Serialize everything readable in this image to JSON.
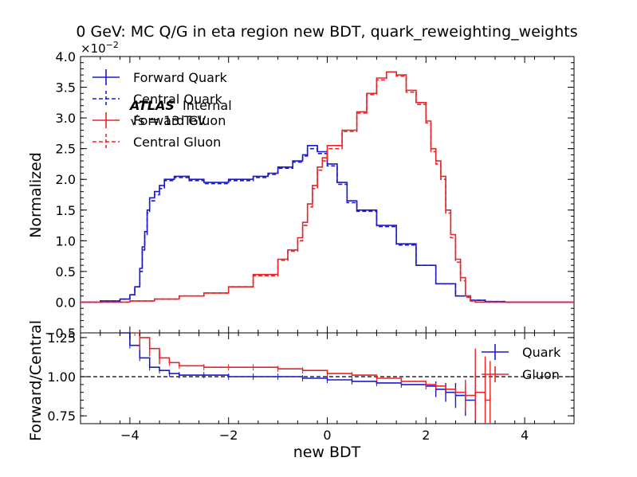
{
  "chart_data": {
    "type": "line",
    "title": "0 GeV: MC Q/G in eta region new BDT, quark_reweighting_weights",
    "annotation": {
      "experiment": "ATLAS",
      "status": "Internal",
      "energy": "√s = 13 TeV"
    },
    "xlabel": "new BDT",
    "xlim": [
      -5,
      5
    ],
    "xticks": [
      "−4",
      "−2",
      "0",
      "2",
      "4"
    ],
    "legend_placement": "top-left",
    "colors": {
      "quark": "#1a1acc",
      "gluon": "#e8262a"
    },
    "main_panel": {
      "ylabel": "Normalized",
      "ylim": [
        -0.5,
        4.0
      ],
      "scale_label": "×10",
      "scale_exponent": "−2",
      "yticks": [
        "−0.5",
        "0.0",
        "0.5",
        "1.0",
        "1.5",
        "2.0",
        "2.5",
        "3.0",
        "3.5",
        "4.0"
      ],
      "series": [
        {
          "name": "Forward Quark",
          "color": "#1a1acc",
          "dashed": false,
          "points": [
            [
              -5,
              0.0
            ],
            [
              -4.6,
              0.02
            ],
            [
              -4.2,
              0.05
            ],
            [
              -4.0,
              0.12
            ],
            [
              -3.9,
              0.25
            ],
            [
              -3.8,
              0.55
            ],
            [
              -3.75,
              0.9
            ],
            [
              -3.7,
              1.15
            ],
            [
              -3.65,
              1.5
            ],
            [
              -3.6,
              1.7
            ],
            [
              -3.5,
              1.8
            ],
            [
              -3.4,
              1.9
            ],
            [
              -3.3,
              2.0
            ],
            [
              -3.1,
              2.05
            ],
            [
              -2.8,
              2.0
            ],
            [
              -2.5,
              1.95
            ],
            [
              -2.0,
              2.0
            ],
            [
              -1.5,
              2.05
            ],
            [
              -1.2,
              2.1
            ],
            [
              -1.0,
              2.2
            ],
            [
              -0.7,
              2.3
            ],
            [
              -0.5,
              2.4
            ],
            [
              -0.4,
              2.55
            ],
            [
              -0.2,
              2.45
            ],
            [
              0.0,
              2.25
            ],
            [
              0.2,
              1.95
            ],
            [
              0.4,
              1.65
            ],
            [
              0.6,
              1.5
            ],
            [
              1.0,
              1.25
            ],
            [
              1.4,
              0.95
            ],
            [
              1.8,
              0.6
            ],
            [
              2.2,
              0.3
            ],
            [
              2.6,
              0.1
            ],
            [
              2.9,
              0.03
            ],
            [
              3.2,
              0.01
            ],
            [
              3.6,
              0.0
            ],
            [
              5.0,
              0.0
            ]
          ]
        },
        {
          "name": "Central Quark",
          "color": "#1a1acc",
          "dashed": true,
          "points": [
            [
              -5,
              0.0
            ],
            [
              -4.6,
              0.02
            ],
            [
              -4.2,
              0.05
            ],
            [
              -4.0,
              0.12
            ],
            [
              -3.9,
              0.25
            ],
            [
              -3.8,
              0.5
            ],
            [
              -3.75,
              0.85
            ],
            [
              -3.7,
              1.1
            ],
            [
              -3.65,
              1.45
            ],
            [
              -3.6,
              1.65
            ],
            [
              -3.5,
              1.75
            ],
            [
              -3.4,
              1.85
            ],
            [
              -3.3,
              1.98
            ],
            [
              -3.1,
              2.03
            ],
            [
              -2.8,
              1.98
            ],
            [
              -2.5,
              1.93
            ],
            [
              -2.0,
              1.98
            ],
            [
              -1.5,
              2.03
            ],
            [
              -1.2,
              2.08
            ],
            [
              -1.0,
              2.18
            ],
            [
              -0.7,
              2.28
            ],
            [
              -0.5,
              2.38
            ],
            [
              -0.4,
              2.5
            ],
            [
              -0.2,
              2.42
            ],
            [
              0.0,
              2.22
            ],
            [
              0.2,
              1.92
            ],
            [
              0.4,
              1.62
            ],
            [
              0.6,
              1.48
            ],
            [
              1.0,
              1.23
            ],
            [
              1.4,
              0.93
            ],
            [
              1.8,
              0.6
            ],
            [
              2.2,
              0.3
            ],
            [
              2.6,
              0.1
            ],
            [
              2.9,
              0.03
            ],
            [
              3.2,
              0.01
            ],
            [
              3.6,
              0.0
            ],
            [
              5.0,
              0.0
            ]
          ]
        },
        {
          "name": "Forward Gluon",
          "color": "#e8262a",
          "dashed": false,
          "points": [
            [
              -5,
              0.0
            ],
            [
              -4.0,
              0.02
            ],
            [
              -3.5,
              0.05
            ],
            [
              -3.0,
              0.1
            ],
            [
              -2.5,
              0.15
            ],
            [
              -2.0,
              0.25
            ],
            [
              -1.5,
              0.45
            ],
            [
              -1.0,
              0.7
            ],
            [
              -0.8,
              0.85
            ],
            [
              -0.6,
              1.05
            ],
            [
              -0.5,
              1.3
            ],
            [
              -0.4,
              1.6
            ],
            [
              -0.3,
              1.9
            ],
            [
              -0.2,
              2.2
            ],
            [
              -0.1,
              2.35
            ],
            [
              0.0,
              2.55
            ],
            [
              0.3,
              2.8
            ],
            [
              0.6,
              3.1
            ],
            [
              0.8,
              3.4
            ],
            [
              1.0,
              3.65
            ],
            [
              1.2,
              3.75
            ],
            [
              1.4,
              3.7
            ],
            [
              1.6,
              3.45
            ],
            [
              1.8,
              3.25
            ],
            [
              2.0,
              2.95
            ],
            [
              2.1,
              2.5
            ],
            [
              2.2,
              2.3
            ],
            [
              2.3,
              2.05
            ],
            [
              2.4,
              1.5
            ],
            [
              2.5,
              1.1
            ],
            [
              2.6,
              0.7
            ],
            [
              2.7,
              0.4
            ],
            [
              2.8,
              0.1
            ],
            [
              2.9,
              0.02
            ],
            [
              3.0,
              0.0
            ],
            [
              5.0,
              0.0
            ]
          ]
        },
        {
          "name": "Central Gluon",
          "color": "#e8262a",
          "dashed": true,
          "points": [
            [
              -5,
              0.0
            ],
            [
              -4.0,
              0.02
            ],
            [
              -3.5,
              0.05
            ],
            [
              -3.0,
              0.1
            ],
            [
              -2.5,
              0.15
            ],
            [
              -2.0,
              0.25
            ],
            [
              -1.5,
              0.43
            ],
            [
              -1.0,
              0.68
            ],
            [
              -0.8,
              0.83
            ],
            [
              -0.6,
              1.0
            ],
            [
              -0.5,
              1.25
            ],
            [
              -0.4,
              1.55
            ],
            [
              -0.3,
              1.85
            ],
            [
              -0.2,
              2.15
            ],
            [
              -0.1,
              2.3
            ],
            [
              0.0,
              2.5
            ],
            [
              0.3,
              2.78
            ],
            [
              0.6,
              3.08
            ],
            [
              0.8,
              3.38
            ],
            [
              1.0,
              3.62
            ],
            [
              1.2,
              3.75
            ],
            [
              1.4,
              3.68
            ],
            [
              1.6,
              3.42
            ],
            [
              1.8,
              3.22
            ],
            [
              2.0,
              2.92
            ],
            [
              2.1,
              2.45
            ],
            [
              2.2,
              2.25
            ],
            [
              2.3,
              2.0
            ],
            [
              2.4,
              1.45
            ],
            [
              2.5,
              1.05
            ],
            [
              2.6,
              0.65
            ],
            [
              2.7,
              0.35
            ],
            [
              2.8,
              0.08
            ],
            [
              2.9,
              0.02
            ],
            [
              3.0,
              0.0
            ],
            [
              5.0,
              0.0
            ]
          ]
        }
      ]
    },
    "ratio_panel": {
      "ylabel": "Forward/Central",
      "ylim": [
        0.7,
        1.28
      ],
      "yticks": [
        "0.75",
        "1.00",
        "1.25"
      ],
      "reference_line": 1.0,
      "series": [
        {
          "name": "Quark",
          "color": "#1a1acc",
          "points": [
            [
              -4.2,
              1.28
            ],
            [
              -4.0,
              1.2
            ],
            [
              -3.8,
              1.12
            ],
            [
              -3.6,
              1.06
            ],
            [
              -3.4,
              1.04
            ],
            [
              -3.2,
              1.02
            ],
            [
              -3.0,
              1.01
            ],
            [
              -2.5,
              1.01
            ],
            [
              -2.0,
              1.0
            ],
            [
              -1.5,
              1.0
            ],
            [
              -1.0,
              1.0
            ],
            [
              -0.5,
              0.99
            ],
            [
              0.0,
              0.98
            ],
            [
              0.5,
              0.97
            ],
            [
              1.0,
              0.96
            ],
            [
              1.5,
              0.95
            ],
            [
              2.0,
              0.94
            ],
            [
              2.2,
              0.92
            ],
            [
              2.4,
              0.9
            ],
            [
              2.6,
              0.88
            ],
            [
              2.8,
              0.85
            ],
            [
              3.0,
              0.82
            ]
          ],
          "errors": [
            [
              2.2,
              0.05
            ],
            [
              2.4,
              0.06
            ],
            [
              2.6,
              0.08
            ],
            [
              2.8,
              0.1
            ],
            [
              3.0,
              0.2
            ]
          ]
        },
        {
          "name": "Gluon",
          "color": "#e8262a",
          "points": [
            [
              -3.9,
              1.28
            ],
            [
              -3.8,
              1.25
            ],
            [
              -3.6,
              1.18
            ],
            [
              -3.4,
              1.12
            ],
            [
              -3.2,
              1.09
            ],
            [
              -3.0,
              1.07
            ],
            [
              -2.5,
              1.06
            ],
            [
              -2.0,
              1.06
            ],
            [
              -1.5,
              1.06
            ],
            [
              -1.0,
              1.05
            ],
            [
              -0.5,
              1.04
            ],
            [
              0.0,
              1.02
            ],
            [
              0.5,
              1.01
            ],
            [
              1.0,
              0.99
            ],
            [
              1.5,
              0.97
            ],
            [
              2.0,
              0.95
            ],
            [
              2.2,
              0.94
            ],
            [
              2.4,
              0.92
            ],
            [
              2.6,
              0.9
            ],
            [
              2.8,
              0.88
            ],
            [
              3.0,
              0.9
            ],
            [
              3.2,
              0.85
            ],
            [
              3.3,
              0.88
            ]
          ],
          "errors": [
            [
              -3.8,
              0.08
            ],
            [
              -3.6,
              0.05
            ],
            [
              -3.4,
              0.04
            ],
            [
              2.8,
              0.1
            ],
            [
              3.0,
              0.28
            ],
            [
              3.2,
              0.28
            ],
            [
              3.3,
              0.22
            ]
          ]
        }
      ]
    }
  }
}
